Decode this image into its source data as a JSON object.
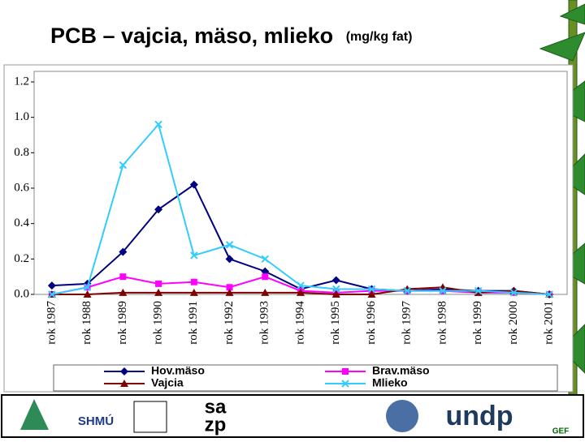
{
  "chart_data": {
    "type": "line",
    "title": "PCB – vajcia, mäso, mlieko",
    "unit": "(mg/kg fat)",
    "categories": [
      "rok 1987",
      "rok 1988",
      "rok 1989",
      "rok 1990",
      "rok 1991",
      "rok 1992",
      "rok 1993",
      "rok 1994",
      "rok 1995",
      "rok 1996",
      "rok 1997",
      "rok 1998",
      "rok 1999",
      "rok 2000",
      "rok 2001"
    ],
    "series": [
      {
        "name": "Hov.mäso",
        "color": "#000080",
        "marker": "diamond",
        "values": [
          0.05,
          0.06,
          0.24,
          0.48,
          0.62,
          0.2,
          0.13,
          0.03,
          0.08,
          0.03,
          0.02,
          0.03,
          0.02,
          0.02,
          0.0
        ]
      },
      {
        "name": "Brav.mäso",
        "color": "#ff00ff",
        "marker": "square",
        "values": [
          0.0,
          0.04,
          0.1,
          0.06,
          0.07,
          0.04,
          0.1,
          0.02,
          0.01,
          0.02,
          0.02,
          0.02,
          0.01,
          0.01,
          0.0
        ]
      },
      {
        "name": "Vajcia",
        "color": "#800000",
        "marker": "triangle",
        "values": [
          0.0,
          0.0,
          0.01,
          0.01,
          0.01,
          0.01,
          0.01,
          0.01,
          0.0,
          0.0,
          0.03,
          0.04,
          0.01,
          0.02,
          0.0
        ]
      },
      {
        "name": "Mlieko",
        "color": "#33ccff",
        "marker": "x",
        "values": [
          0.0,
          0.04,
          0.73,
          0.96,
          0.22,
          0.28,
          0.2,
          0.05,
          0.03,
          0.03,
          0.02,
          0.02,
          0.02,
          0.01,
          0.0
        ]
      }
    ],
    "ylim": [
      0,
      1.2
    ],
    "yticks": [
      {
        "value": 0,
        "label": "0.0"
      },
      0.2,
      0.4,
      0.6,
      0.8,
      {
        "value": 1,
        "label": "1.0"
      },
      1.2
    ],
    "grid": false
  },
  "logos": [
    "SHMÚ",
    "sa",
    "zp",
    "undp",
    "GEF"
  ]
}
